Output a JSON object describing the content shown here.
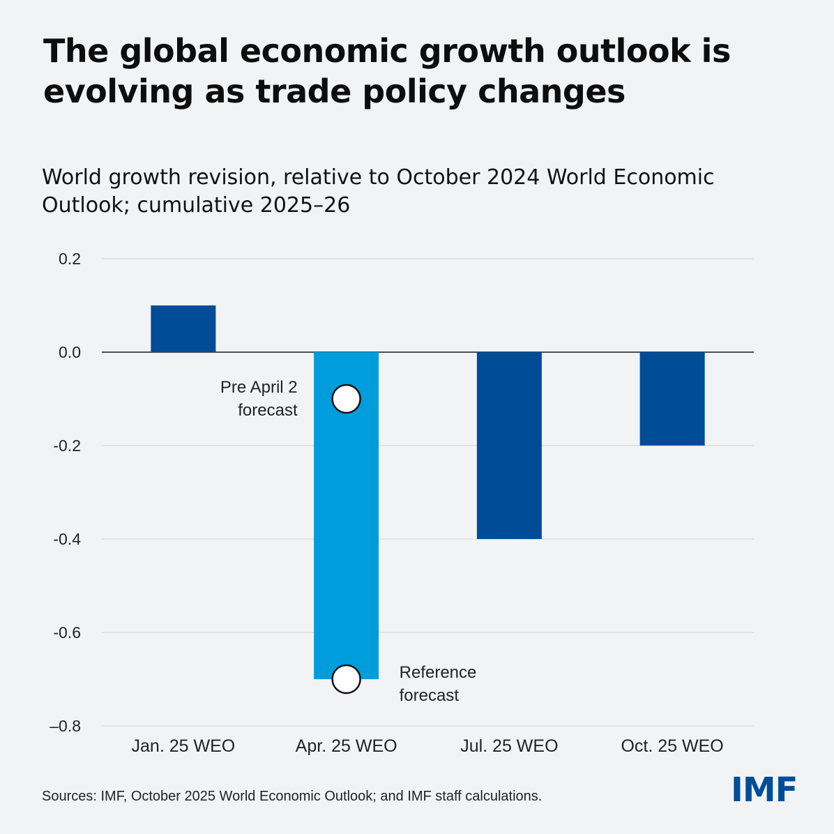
{
  "header": {
    "title": "The global economic growth outlook is evolving as trade policy changes",
    "subtitle": "World growth revision, relative to October 2024 World Economic Outlook; cumulative 2025–26"
  },
  "chart_data": {
    "type": "bar",
    "categories": [
      "Jan. 25 WEO",
      "Apr. 25 WEO",
      "Jul. 25 WEO",
      "Oct. 25 WEO"
    ],
    "values": [
      0.1,
      -0.7,
      -0.4,
      -0.2
    ],
    "bar_colors": [
      "#004c97",
      "#009ddc",
      "#004c97",
      "#004c97"
    ],
    "ylim": [
      -0.8,
      0.2
    ],
    "yticks": [
      0.2,
      0.0,
      -0.2,
      -0.4,
      -0.6,
      -0.8
    ],
    "ytick_labels": [
      "0.2",
      "0.0",
      "-0.2",
      "-0.4",
      "-0.6",
      "–0.8"
    ],
    "grid": true,
    "markers": [
      {
        "category": "Apr. 25 WEO",
        "value": -0.1,
        "label_lines": [
          "Pre April 2",
          "forecast"
        ],
        "label_side": "left"
      },
      {
        "category": "Apr. 25 WEO",
        "value": -0.7,
        "label_lines": [
          "Reference",
          "forecast"
        ],
        "label_side": "right"
      }
    ]
  },
  "footer": {
    "source": "Sources: IMF, October 2025 World Economic Outlook; and IMF staff calculations.",
    "logo_text": "IMF"
  },
  "colors": {
    "background": "#f2f3f5",
    "dark_blue": "#004c97",
    "light_blue": "#009ddc"
  }
}
